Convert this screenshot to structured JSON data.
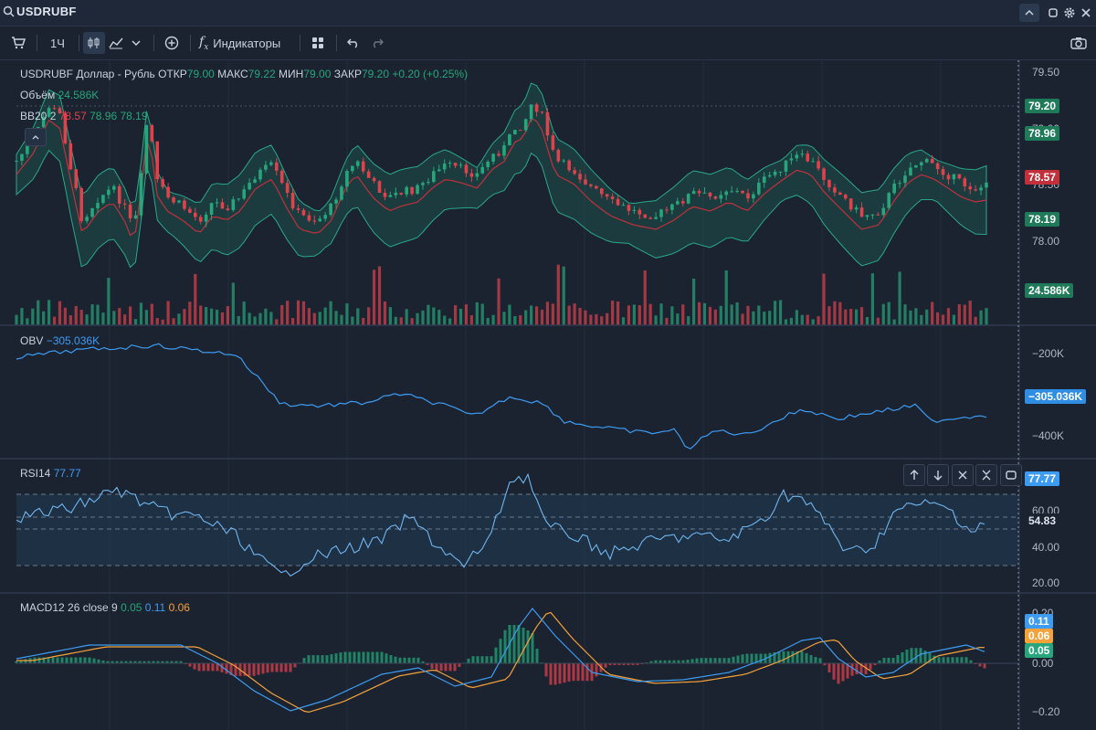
{
  "header": {
    "symbol": "USDRUBF"
  },
  "toolbar": {
    "timeframe": "1Ч",
    "indicators_label": "Индикаторы"
  },
  "main_legend": {
    "title": "USDRUBF Доллар - Рубль",
    "open_label": "ОТКР",
    "open_value": "79.00",
    "high_label": "МАКС",
    "high_value": "79.22",
    "low_label": "МИН",
    "low_value": "79.00",
    "close_label": "ЗАКР",
    "close_value": "79.20",
    "change": "+0.20 (+0.25%)"
  },
  "volume_legend": {
    "label": "Объём",
    "value": "24.586K"
  },
  "bb_legend": {
    "label": "BB20 2",
    "mid": "78.57",
    "upper": "78.96",
    "lower": "78.19"
  },
  "obv_legend": {
    "label": "OBV",
    "value": "−305.036K"
  },
  "rsi_legend": {
    "label": "RSI14",
    "value": "77.77"
  },
  "macd_legend": {
    "label": "MACD12 26 close 9",
    "hist": "0.05",
    "macd": "0.11",
    "signal": "0.06"
  },
  "price_axis": [
    "79.50",
    "79.00",
    "78.50",
    "78.00"
  ],
  "price_badges": {
    "last": "79.20",
    "upper": "78.96",
    "mid": "78.57",
    "lower": "78.19",
    "volume": "24.586K"
  },
  "obv_axis": [
    "−200K",
    "−400K"
  ],
  "obv_badge": "−305.036K",
  "rsi_axis": [
    "60.00",
    "40.00",
    "20.00"
  ],
  "rsi_badges": {
    "value": "77.77",
    "ma": "54.83"
  },
  "macd_axis": [
    "0.20",
    "0.00",
    "−0.20"
  ],
  "macd_badges": {
    "macd": "0.11",
    "signal": "0.06",
    "hist": "0.05"
  },
  "colors": {
    "up": "#26a67a",
    "down": "#e0414b",
    "bb_band": "#1f7a66",
    "bb_mid": "#c2303b",
    "obv_line": "#3d9cf2",
    "rsi_line": "#6fb6f0",
    "macd_line": "#3d9cf2",
    "signal_line": "#f5a23a",
    "background": "#1b2331"
  }
}
